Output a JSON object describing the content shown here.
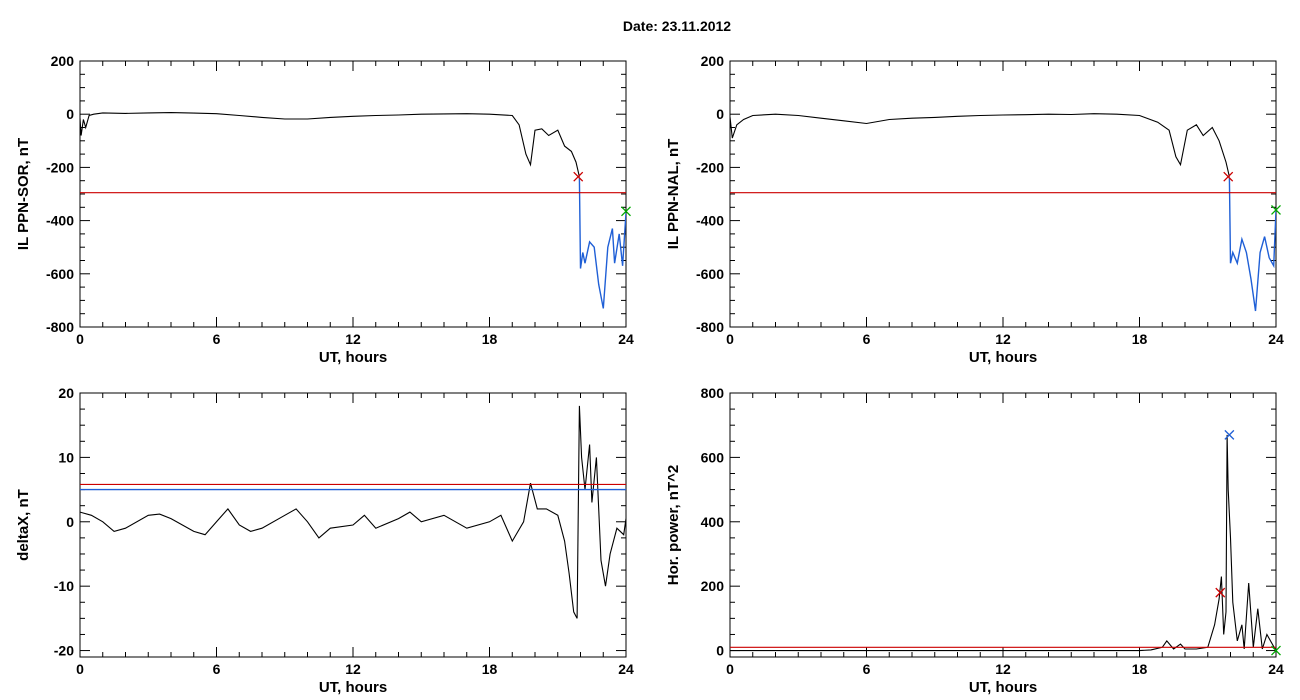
{
  "title": "Date:  23.11.2012",
  "colors": {
    "axis": "#000000",
    "trace": "#000000",
    "red": "#cc0000",
    "blue": "#1f5fd6",
    "green": "#00aa00"
  },
  "chart_data": [
    {
      "id": "il-sor",
      "type": "line",
      "xlabel": "UT, hours",
      "ylabel": "IL PPN-SOR, nT",
      "xlim": [
        0,
        24
      ],
      "ylim": [
        -800,
        200
      ],
      "xticks": [
        0,
        6,
        12,
        18,
        24
      ],
      "yticks": [
        200,
        0,
        -200,
        -400,
        -600,
        -800
      ],
      "series": [
        {
          "color": "black",
          "x": [
            0,
            0.05,
            0.15,
            0.25,
            0.4,
            0.6,
            1,
            2,
            3,
            4,
            5,
            6,
            7,
            8,
            9,
            10,
            11,
            12,
            13,
            14,
            15,
            16,
            17,
            18,
            19,
            19.3,
            19.6,
            19.8,
            20,
            20.3,
            20.6,
            21,
            21.3,
            21.6,
            21.8,
            21.95
          ],
          "y": [
            -15,
            -80,
            -20,
            -50,
            -5,
            0,
            5,
            3,
            5,
            6,
            4,
            2,
            -5,
            -12,
            -18,
            -18,
            -12,
            -8,
            -5,
            -3,
            0,
            1,
            2,
            0,
            -5,
            -40,
            -150,
            -190,
            -60,
            -55,
            -80,
            -60,
            -120,
            -140,
            -180,
            -235
          ]
        },
        {
          "color": "blue",
          "x": [
            21.95,
            22,
            22.1,
            22.2,
            22.4,
            22.6,
            22.8,
            23,
            23.2,
            23.4,
            23.5,
            23.7,
            23.85,
            24
          ],
          "y": [
            -240,
            -580,
            -520,
            -560,
            -480,
            -500,
            -640,
            -730,
            -500,
            -430,
            -560,
            -450,
            -570,
            -370
          ]
        },
        {
          "color": "red",
          "x": [
            0,
            24
          ],
          "y": [
            -295,
            -295
          ]
        }
      ],
      "markers": [
        {
          "color": "red",
          "x": 21.9,
          "y": -235
        },
        {
          "color": "green",
          "x": 24,
          "y": -365
        }
      ]
    },
    {
      "id": "il-nal",
      "type": "line",
      "xlabel": "UT, hours",
      "ylabel": "IL PPN-NAL, nT",
      "xlim": [
        0,
        24
      ],
      "ylim": [
        -800,
        200
      ],
      "xticks": [
        0,
        6,
        12,
        18,
        24
      ],
      "yticks": [
        200,
        0,
        -200,
        -400,
        -600,
        -800
      ],
      "series": [
        {
          "color": "black",
          "x": [
            0,
            0.1,
            0.3,
            0.6,
            1,
            2,
            3,
            4,
            5,
            6,
            7,
            8,
            9,
            10,
            11,
            12,
            13,
            14,
            15,
            16,
            17,
            18,
            18.8,
            19.3,
            19.6,
            19.8,
            20.1,
            20.5,
            20.8,
            21.2,
            21.5,
            21.8,
            21.95
          ],
          "y": [
            -10,
            -90,
            -40,
            -20,
            -5,
            0,
            -5,
            -15,
            -25,
            -35,
            -20,
            -15,
            -12,
            -8,
            -5,
            -3,
            -2,
            0,
            -1,
            2,
            0,
            -5,
            -30,
            -60,
            -160,
            -190,
            -60,
            -40,
            -80,
            -50,
            -100,
            -180,
            -235
          ]
        },
        {
          "color": "blue",
          "x": [
            21.95,
            22,
            22.1,
            22.3,
            22.5,
            22.7,
            22.9,
            23.1,
            23.3,
            23.5,
            23.7,
            23.9,
            24
          ],
          "y": [
            -240,
            -560,
            -520,
            -560,
            -470,
            -520,
            -620,
            -740,
            -520,
            -460,
            -540,
            -570,
            -360
          ]
        },
        {
          "color": "red",
          "x": [
            0,
            24
          ],
          "y": [
            -295,
            -295
          ]
        }
      ],
      "markers": [
        {
          "color": "red",
          "x": 21.9,
          "y": -235
        },
        {
          "color": "green",
          "x": 24,
          "y": -360
        }
      ]
    },
    {
      "id": "deltax",
      "type": "line",
      "xlabel": "UT, hours",
      "ylabel": "deltaX, nT",
      "xlim": [
        0,
        24
      ],
      "ylim": [
        -21,
        20
      ],
      "xticks": [
        0,
        6,
        12,
        18,
        24
      ],
      "yticks": [
        20,
        10,
        0,
        -10,
        -20
      ],
      "series": [
        {
          "color": "black",
          "x": [
            0,
            0.5,
            1,
            1.5,
            2,
            3,
            3.5,
            4,
            5,
            5.5,
            6,
            6.5,
            7,
            7.5,
            8,
            9,
            9.5,
            10,
            10.5,
            11,
            12,
            12.5,
            13,
            14,
            14.5,
            15,
            16,
            17,
            18,
            18.5,
            19,
            19.5,
            19.8,
            20.1,
            20.5,
            21,
            21.3,
            21.5,
            21.7,
            21.85,
            21.95,
            22.05,
            22.2,
            22.4,
            22.5,
            22.7,
            22.9,
            23.1,
            23.3,
            23.6,
            23.9,
            24
          ],
          "y": [
            1.5,
            1,
            0,
            -1.5,
            -1,
            1,
            1.2,
            0.5,
            -1.5,
            -2,
            0,
            2,
            -0.5,
            -1.5,
            -1,
            1,
            2,
            0,
            -2.5,
            -1,
            -0.5,
            1,
            -1,
            0.5,
            1.5,
            0,
            1,
            -1,
            0,
            1,
            -3,
            0,
            6,
            2,
            2,
            1,
            -3,
            -8,
            -14,
            -15,
            18,
            10,
            5,
            12,
            3,
            10,
            -6,
            -10,
            -5,
            -1,
            -2,
            0.5
          ]
        },
        {
          "color": "red",
          "x": [
            0,
            24
          ],
          "y": [
            5.8,
            5.8
          ]
        },
        {
          "color": "blue",
          "x": [
            0,
            24
          ],
          "y": [
            5,
            5
          ]
        }
      ],
      "markers": []
    },
    {
      "id": "hor-power",
      "type": "line",
      "xlabel": "UT, hours",
      "ylabel": "Hor. power, nT^2",
      "xlim": [
        0,
        24
      ],
      "ylim": [
        -20,
        800
      ],
      "xticks": [
        0,
        6,
        12,
        18,
        24
      ],
      "yticks": [
        800,
        600,
        400,
        200,
        0
      ],
      "series": [
        {
          "color": "black",
          "x": [
            0,
            3,
            6,
            9,
            12,
            15,
            18,
            18.5,
            19,
            19.2,
            19.5,
            19.8,
            20,
            20.5,
            21,
            21.3,
            21.5,
            21.6,
            21.7,
            21.8,
            21.85,
            21.9,
            22,
            22.1,
            22.3,
            22.5,
            22.6,
            22.8,
            23,
            23.2,
            23.4,
            23.6,
            24
          ],
          "y": [
            0,
            0,
            0,
            0,
            0,
            0,
            0,
            2,
            10,
            30,
            5,
            20,
            5,
            5,
            10,
            80,
            160,
            230,
            50,
            120,
            670,
            500,
            350,
            150,
            30,
            80,
            5,
            210,
            10,
            130,
            5,
            50,
            0
          ]
        },
        {
          "color": "red",
          "x": [
            0,
            24
          ],
          "y": [
            10,
            10
          ]
        }
      ],
      "markers": [
        {
          "color": "blue",
          "x": 21.95,
          "y": 670
        },
        {
          "color": "red",
          "x": 21.55,
          "y": 180
        },
        {
          "color": "green",
          "x": 24,
          "y": 0
        }
      ]
    }
  ]
}
